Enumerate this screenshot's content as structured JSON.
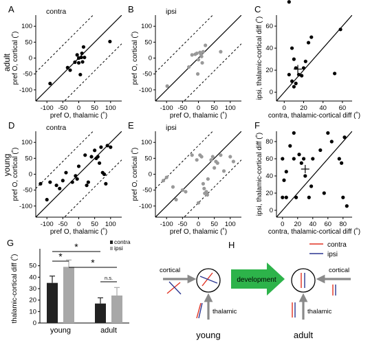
{
  "panels": {
    "A": {
      "letter": "A",
      "tag": "contra",
      "row_label": "adult",
      "ylabel": "pref O, cortical (˚)",
      "xlabel": "pref O, thalamic (˚)",
      "ticks": [
        -100,
        -50,
        0,
        50,
        100
      ],
      "tick_labels": [
        "-100",
        "-50",
        "0",
        "50",
        "100"
      ],
      "color": "#000000",
      "points": [
        [
          -12,
          -13
        ],
        [
          0,
          -15
        ],
        [
          12,
          -12
        ],
        [
          18,
          2
        ],
        [
          -27,
          -38
        ],
        [
          -5,
          10
        ],
        [
          -35,
          -30
        ],
        [
          10,
          15
        ],
        [
          15,
          35
        ],
        [
          0,
          0
        ],
        [
          8,
          2
        ],
        [
          5,
          -52
        ],
        [
          -90,
          -80
        ],
        [
          98,
          52
        ]
      ]
    },
    "B": {
      "letter": "B",
      "tag": "ipsi",
      "ylabel": "pref O, cortical (˚)",
      "xlabel": "pref O, thalamic (˚)",
      "ticks": [
        -100,
        -50,
        0,
        50,
        100
      ],
      "tick_labels": [
        "-100",
        "-50",
        "0",
        "50",
        "100"
      ],
      "color": "#999999",
      "points": [
        [
          -20,
          10
        ],
        [
          -10,
          12
        ],
        [
          -5,
          15
        ],
        [
          5,
          18
        ],
        [
          8,
          12
        ],
        [
          15,
          20
        ],
        [
          22,
          40
        ],
        [
          -30,
          -28
        ],
        [
          -2,
          -50
        ],
        [
          0,
          -5
        ],
        [
          12,
          -15
        ],
        [
          70,
          20
        ],
        [
          -98,
          -88
        ],
        [
          10,
          5
        ]
      ]
    },
    "C": {
      "letter": "C",
      "xlabel": "contra, thalamic-cortical diff (˚)",
      "ylabel": "ipsi, thalamic-cortical diff (˚)",
      "ticks": [
        0,
        20,
        40,
        60
      ],
      "tick_labels": [
        "0",
        "20",
        "40",
        "60"
      ],
      "color": "#000000",
      "points": [
        [
          5,
          82
        ],
        [
          8,
          40
        ],
        [
          10,
          30
        ],
        [
          12,
          22
        ],
        [
          15,
          16
        ],
        [
          18,
          15
        ],
        [
          20,
          22
        ],
        [
          22,
          28
        ],
        [
          25,
          45
        ],
        [
          28,
          50
        ],
        [
          5,
          16
        ],
        [
          10,
          5
        ],
        [
          12,
          8
        ],
        [
          52,
          17
        ],
        [
          58,
          57
        ],
        [
          8,
          10
        ]
      ],
      "mean": [
        14,
        21
      ]
    },
    "D": {
      "letter": "D",
      "tag": "contra",
      "row_label": "young",
      "ylabel": "pref O, cortical (˚)",
      "xlabel": "pref O, thalamic (˚)",
      "ticks": [
        -100,
        -50,
        0,
        50,
        100
      ],
      "tick_labels": [
        "-100",
        "-50",
        "0",
        "50",
        "100"
      ],
      "color": "#000000",
      "points": [
        [
          -120,
          -30
        ],
        [
          -100,
          -80
        ],
        [
          -70,
          -35
        ],
        [
          -60,
          -45
        ],
        [
          -50,
          -20
        ],
        [
          -40,
          5
        ],
        [
          -20,
          -25
        ],
        [
          -10,
          -5
        ],
        [
          -5,
          -15
        ],
        [
          0,
          25
        ],
        [
          20,
          60
        ],
        [
          25,
          -35
        ],
        [
          30,
          -25
        ],
        [
          40,
          55
        ],
        [
          50,
          75
        ],
        [
          60,
          55
        ],
        [
          65,
          35
        ],
        [
          70,
          85
        ],
        [
          75,
          5
        ],
        [
          80,
          0
        ],
        [
          85,
          -30
        ],
        [
          90,
          90
        ],
        [
          100,
          85
        ],
        [
          -90,
          -25
        ],
        [
          55,
          50
        ]
      ]
    },
    "E": {
      "letter": "E",
      "tag": "ipsi",
      "ylabel": "pref O, cortical (˚)",
      "xlabel": "pref O, thalamic (˚)",
      "ticks": [
        -100,
        -50,
        0,
        50,
        100
      ],
      "tick_labels": [
        "-100",
        "-50",
        "0",
        "50",
        "100"
      ],
      "color": "#999999",
      "points": [
        [
          -110,
          -20
        ],
        [
          -100,
          -10
        ],
        [
          -80,
          -40
        ],
        [
          -70,
          -80
        ],
        [
          -50,
          -50
        ],
        [
          0,
          -90
        ],
        [
          5,
          60
        ],
        [
          10,
          55
        ],
        [
          15,
          -30
        ],
        [
          18,
          -45
        ],
        [
          20,
          -60
        ],
        [
          25,
          -55
        ],
        [
          28,
          -65
        ],
        [
          30,
          -15
        ],
        [
          40,
          45
        ],
        [
          45,
          55
        ],
        [
          50,
          20
        ],
        [
          55,
          40
        ],
        [
          60,
          35
        ],
        [
          70,
          60
        ],
        [
          -20,
          60
        ],
        [
          -5,
          45
        ],
        [
          80,
          10
        ],
        [
          100,
          55
        ],
        [
          110,
          40
        ],
        [
          -40,
          -55
        ]
      ]
    },
    "F": {
      "letter": "F",
      "xlabel": "contra, thalamic-cortical diff (˚)",
      "ylabel": "ipsi, thalamic-cortical diff (˚)",
      "ticks": [
        0,
        20,
        40,
        60,
        80
      ],
      "tick_labels": [
        "0",
        "20",
        "40",
        "60",
        "80"
      ],
      "color": "#000000",
      "points": [
        [
          0,
          60
        ],
        [
          2,
          35
        ],
        [
          5,
          45
        ],
        [
          5,
          15
        ],
        [
          10,
          75
        ],
        [
          15,
          90
        ],
        [
          15,
          60
        ],
        [
          18,
          15
        ],
        [
          22,
          65
        ],
        [
          25,
          55
        ],
        [
          28,
          60
        ],
        [
          30,
          40
        ],
        [
          35,
          15
        ],
        [
          38,
          28
        ],
        [
          40,
          60
        ],
        [
          50,
          70
        ],
        [
          55,
          20
        ],
        [
          60,
          90
        ],
        [
          65,
          80
        ],
        [
          75,
          60
        ],
        [
          78,
          55
        ],
        [
          80,
          15
        ],
        [
          85,
          5
        ],
        [
          82,
          85
        ],
        [
          0,
          15
        ]
      ],
      "mean": [
        30,
        48
      ]
    }
  },
  "chart_data": [
    {
      "type": "bar",
      "panel": "G",
      "letter": "G",
      "ylabel": "thalamic-cortical diff (˚)",
      "categories": [
        "young",
        "adult"
      ],
      "series": [
        {
          "name": "contra",
          "values": [
            35,
            17
          ],
          "errors": [
            6,
            5
          ],
          "color": "#222222"
        },
        {
          "name": "ipsi",
          "values": [
            49,
            24
          ],
          "errors": [
            6,
            7
          ],
          "color": "#a8a8a8"
        }
      ],
      "ylim": [
        0,
        60
      ],
      "ticks": [
        0,
        10,
        20,
        30,
        40,
        50
      ],
      "tick_labels": [
        "0",
        "10",
        "20",
        "30",
        "40",
        "50"
      ],
      "significance": [
        {
          "label": "*"
        },
        {
          "label": "*"
        },
        {
          "label": "*"
        },
        {
          "label": "n.s."
        }
      ]
    }
  ],
  "diagram": {
    "letter": "H",
    "legend": [
      {
        "label": "contra",
        "color": "#e03020"
      },
      {
        "label": "ipsi",
        "color": "#2a3590"
      }
    ],
    "cortical_label": "cortical",
    "thalamic_label": "thalamic",
    "arrow_label": "development",
    "arrow_color": "#2db34a",
    "young_label": "young",
    "adult_label": "adult"
  }
}
